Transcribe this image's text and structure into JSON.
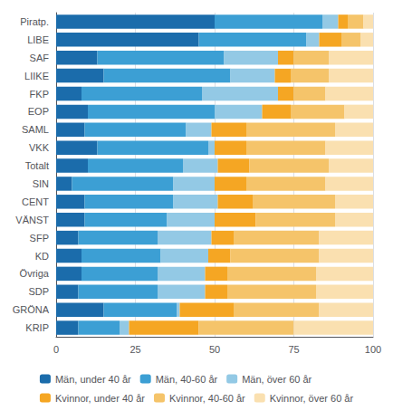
{
  "chart_data": {
    "type": "bar",
    "orientation": "horizontal",
    "stacked": true,
    "categories": [
      "KRIP",
      "GRÖNA",
      "SDP",
      "Övriga",
      "KD",
      "SFP",
      "VÄNST",
      "CENT",
      "SIN",
      "Totalt",
      "VKK",
      "SAML",
      "EOP",
      "FKP",
      "LIIKE",
      "SAF",
      "LIBE",
      "Piratp."
    ],
    "series": [
      {
        "name": "Män, under 40 år",
        "color": "#1B6CAB",
        "values": [
          7,
          15,
          7,
          8,
          8,
          7,
          9,
          9,
          5,
          10,
          13,
          9,
          10,
          8,
          15,
          13,
          45,
          50
        ]
      },
      {
        "name": "Män, 40-60 år",
        "color": "#3C9FD4",
        "values": [
          13,
          23,
          25,
          24,
          25,
          25,
          26,
          28,
          32,
          30,
          35,
          32,
          40,
          38,
          40,
          40,
          34,
          34
        ]
      },
      {
        "name": "Män, över 60 år",
        "color": "#93C9E5",
        "values": [
          3,
          1,
          15,
          15,
          15,
          17,
          15,
          14,
          13,
          11,
          2,
          8,
          15,
          24,
          14,
          17,
          4,
          5
        ]
      },
      {
        "name": "Kvinnor, under 40 år",
        "color": "#F5A623",
        "values": [
          22,
          17,
          7,
          7,
          7,
          7,
          13,
          11,
          10,
          10,
          10,
          11,
          9,
          5,
          5,
          5,
          7,
          3
        ]
      },
      {
        "name": "Kvinnor, 40-60 år",
        "color": "#F5C46A",
        "values": [
          30,
          27,
          28,
          28,
          28,
          27,
          25,
          26,
          25,
          25,
          25,
          28,
          17,
          10,
          12,
          11,
          6,
          5
        ]
      },
      {
        "name": "Kvinnor, över 60 år",
        "color": "#FAE0B0",
        "values": [
          25,
          17,
          18,
          18,
          17,
          17,
          12,
          12,
          15,
          14,
          15,
          12,
          9,
          15,
          14,
          14,
          4,
          3
        ]
      }
    ],
    "xlim": [
      0,
      100
    ],
    "xticks": [
      0,
      25,
      50,
      75,
      100
    ],
    "grid": true,
    "legend": "bottom"
  }
}
